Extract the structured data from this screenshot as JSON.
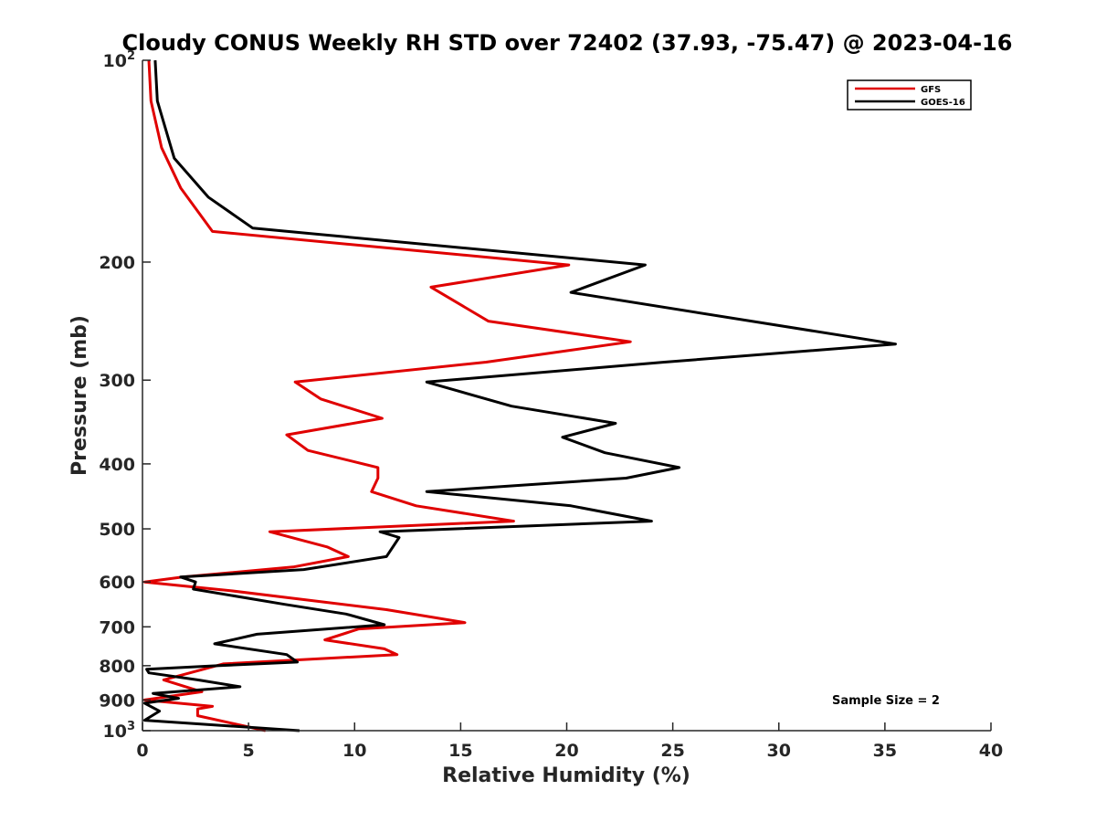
{
  "chart_data": {
    "type": "line",
    "title": "Cloudy CONUS Weekly RH STD over 72402 (37.93, -75.47) @ 2023-04-16",
    "xlabel": "Relative Humidity (%)",
    "ylabel": "Pressure (mb)",
    "xlim": [
      0,
      40
    ],
    "ylim": [
      100,
      1000
    ],
    "y_scale": "log",
    "y_reversed": true,
    "x_ticks": [
      0,
      5,
      10,
      15,
      20,
      25,
      30,
      35,
      40
    ],
    "x_tick_labels": [
      "0",
      "5",
      "10",
      "15",
      "20",
      "25",
      "30",
      "35",
      "40"
    ],
    "y_ticks": [
      100,
      200,
      300,
      400,
      500,
      600,
      700,
      800,
      900,
      1000
    ],
    "y_tick_labels": [
      {
        "base": "10",
        "exp": "2"
      },
      {
        "base": "200",
        "exp": ""
      },
      {
        "base": "300",
        "exp": ""
      },
      {
        "base": "400",
        "exp": ""
      },
      {
        "base": "500",
        "exp": ""
      },
      {
        "base": "600",
        "exp": ""
      },
      {
        "base": "700",
        "exp": ""
      },
      {
        "base": "800",
        "exp": ""
      },
      {
        "base": "900",
        "exp": ""
      },
      {
        "base": "10",
        "exp": "3"
      }
    ],
    "grid": false,
    "legend_position": "top-right",
    "annotation": "Sample Size = 2",
    "series": [
      {
        "name": "GFS",
        "color": "#e00000",
        "points": [
          [
            0.3,
            100
          ],
          [
            0.4,
            115
          ],
          [
            0.9,
            135
          ],
          [
            1.8,
            155
          ],
          [
            3.3,
            180
          ],
          [
            20.1,
            202
          ],
          [
            13.6,
            218
          ],
          [
            16.3,
            245
          ],
          [
            23.0,
            263
          ],
          [
            16.2,
            282
          ],
          [
            7.2,
            302
          ],
          [
            8.4,
            320
          ],
          [
            11.3,
            342
          ],
          [
            6.8,
            362
          ],
          [
            7.8,
            382
          ],
          [
            11.1,
            405
          ],
          [
            11.1,
            420
          ],
          [
            10.8,
            440
          ],
          [
            12.9,
            462
          ],
          [
            17.5,
            487
          ],
          [
            6.0,
            505
          ],
          [
            8.7,
            532
          ],
          [
            9.7,
            550
          ],
          [
            7.1,
            570
          ],
          [
            1.9,
            590
          ],
          [
            0.1,
            600
          ],
          [
            4.1,
            618
          ],
          [
            11.5,
            660
          ],
          [
            15.2,
            690
          ],
          [
            10.2,
            705
          ],
          [
            8.6,
            732
          ],
          [
            11.4,
            755
          ],
          [
            12.0,
            770
          ],
          [
            3.8,
            795
          ],
          [
            1.0,
            840
          ],
          [
            2.8,
            875
          ],
          [
            0.1,
            900
          ],
          [
            3.3,
            920
          ],
          [
            2.6,
            928
          ],
          [
            2.6,
            950
          ],
          [
            5.8,
            1000
          ]
        ]
      },
      {
        "name": "GOES-16",
        "color": "#000000",
        "points": [
          [
            0.6,
            100
          ],
          [
            0.7,
            115
          ],
          [
            1.5,
            140
          ],
          [
            3.1,
            160
          ],
          [
            5.2,
            178
          ],
          [
            23.7,
            202
          ],
          [
            20.2,
            222
          ],
          [
            35.5,
            265
          ],
          [
            24.6,
            282
          ],
          [
            13.4,
            302
          ],
          [
            17.4,
            328
          ],
          [
            22.3,
            348
          ],
          [
            19.8,
            365
          ],
          [
            21.8,
            385
          ],
          [
            25.3,
            405
          ],
          [
            22.8,
            420
          ],
          [
            13.4,
            440
          ],
          [
            20.2,
            462
          ],
          [
            24.0,
            487
          ],
          [
            11.2,
            505
          ],
          [
            12.1,
            515
          ],
          [
            11.5,
            550
          ],
          [
            7.6,
            575
          ],
          [
            1.8,
            590
          ],
          [
            2.5,
            600
          ],
          [
            2.4,
            615
          ],
          [
            6.7,
            648
          ],
          [
            9.6,
            670
          ],
          [
            11.4,
            695
          ],
          [
            5.4,
            718
          ],
          [
            3.4,
            742
          ],
          [
            6.8,
            770
          ],
          [
            7.3,
            790
          ],
          [
            3.5,
            800
          ],
          [
            0.2,
            810
          ],
          [
            0.3,
            820
          ],
          [
            2.6,
            840
          ],
          [
            4.6,
            860
          ],
          [
            0.5,
            880
          ],
          [
            1.7,
            895
          ],
          [
            0.1,
            910
          ],
          [
            0.8,
            935
          ],
          [
            0.1,
            965
          ],
          [
            7.4,
            1000
          ]
        ]
      }
    ]
  }
}
